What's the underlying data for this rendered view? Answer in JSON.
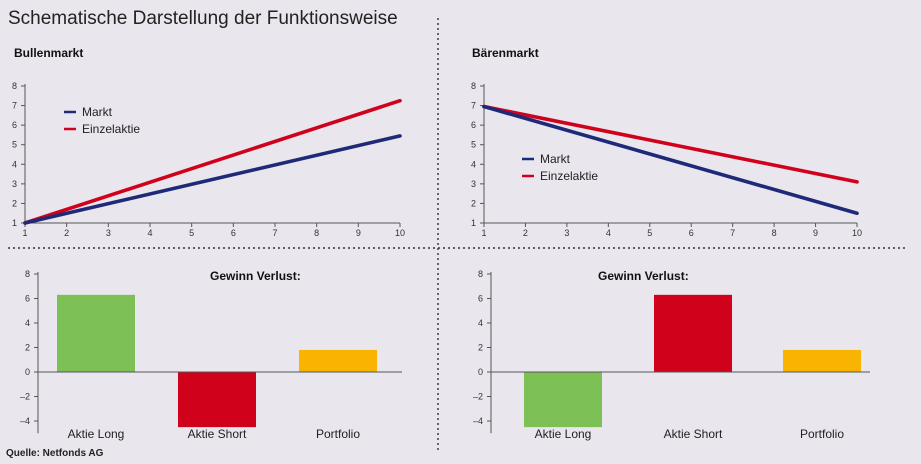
{
  "title": "Schematische Darstellung der Funktionsweise",
  "source": "Quelle: Netfonds AG",
  "colors": {
    "markt": "#1e2a78",
    "einzelaktie": "#d0021b",
    "green": "#7dc055",
    "red": "#d0021b",
    "yellow": "#f8b400",
    "axis": "#555555",
    "divider": "#333333"
  },
  "chart_data": [
    {
      "type": "line",
      "title": "Bullenmarkt",
      "x": [
        1,
        10
      ],
      "xticks": [
        1,
        2,
        3,
        4,
        5,
        6,
        7,
        8,
        9,
        10
      ],
      "yticks": [
        1,
        2,
        3,
        4,
        5,
        6,
        7,
        8
      ],
      "xlim": [
        1,
        10
      ],
      "ylim": [
        1,
        8
      ],
      "series": [
        {
          "name": "Markt",
          "values": [
            1,
            5.45
          ],
          "color": "#1e2a78"
        },
        {
          "name": "Einzelaktie",
          "values": [
            1,
            7.25
          ],
          "color": "#d0021b"
        }
      ],
      "legend_position": "top-left"
    },
    {
      "type": "line",
      "title": "Bärenmarkt",
      "x": [
        1,
        10
      ],
      "xticks": [
        1,
        2,
        3,
        4,
        5,
        6,
        7,
        8,
        9,
        10
      ],
      "yticks": [
        1,
        2,
        3,
        4,
        5,
        6,
        7,
        8
      ],
      "xlim": [
        1,
        10
      ],
      "ylim": [
        1,
        8
      ],
      "series": [
        {
          "name": "Markt",
          "values": [
            6.95,
            1.5
          ],
          "color": "#1e2a78"
        },
        {
          "name": "Einzelaktie",
          "values": [
            6.95,
            3.1
          ],
          "color": "#d0021b"
        }
      ],
      "legend_position": "center-left"
    },
    {
      "type": "bar",
      "title": "Gewinn Verlust:",
      "categories": [
        "Aktie Long",
        "Aktie Short",
        "Portfolio"
      ],
      "values": [
        6.3,
        -4.5,
        1.8
      ],
      "colors": [
        "#7dc055",
        "#d0021b",
        "#f8b400"
      ],
      "yticks": [
        -4,
        -2,
        0,
        2,
        4,
        6,
        8
      ],
      "ytick_labels": [
        "–4",
        "–2",
        "0",
        "2",
        "4",
        "6",
        "8"
      ],
      "ylim": [
        -5,
        8
      ]
    },
    {
      "type": "bar",
      "title": "Gewinn Verlust:",
      "categories": [
        "Aktie Long",
        "Aktie Short",
        "Portfolio"
      ],
      "values": [
        -4.5,
        6.3,
        1.8
      ],
      "colors": [
        "#7dc055",
        "#d0021b",
        "#f8b400"
      ],
      "yticks": [
        -4,
        -2,
        0,
        2,
        4,
        6,
        8
      ],
      "ytick_labels": [
        "–4",
        "–2",
        "0",
        "2",
        "4",
        "6",
        "8"
      ],
      "ylim": [
        -5,
        8
      ]
    }
  ]
}
